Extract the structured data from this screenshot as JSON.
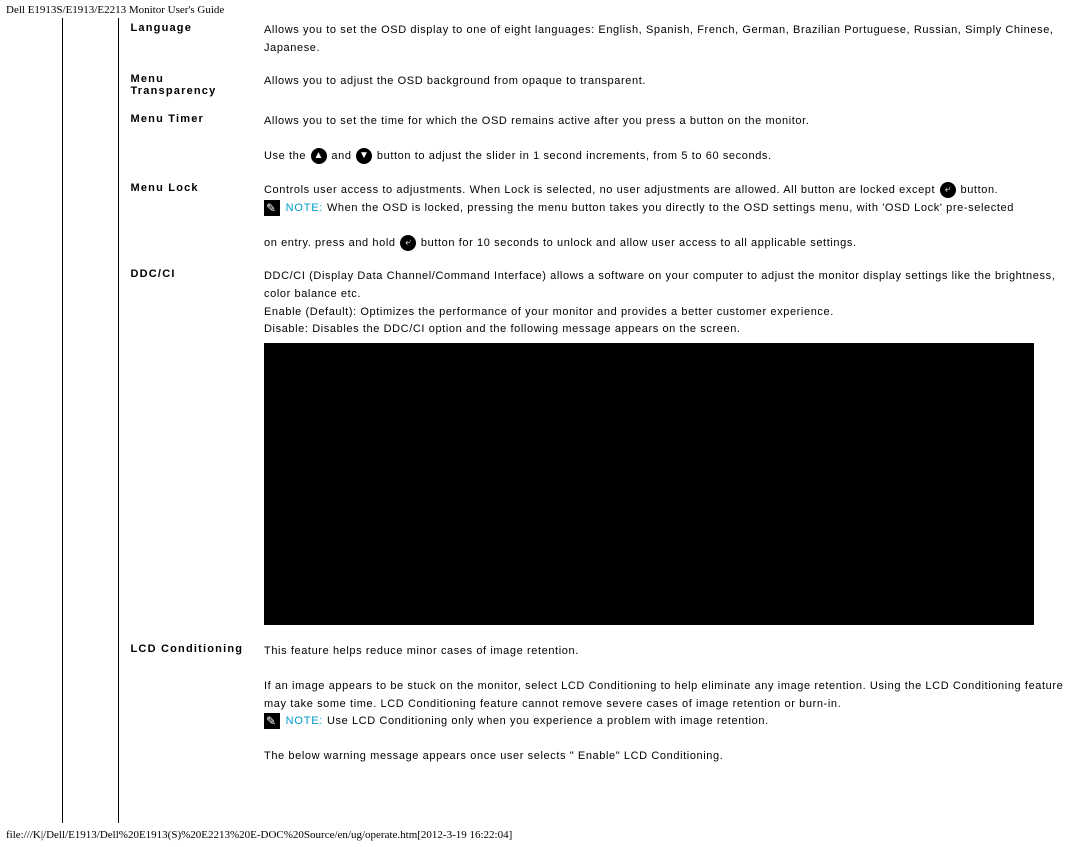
{
  "header": "Dell E1913S/E1913/E2213 Monitor User's Guide",
  "footer": "file:///K|/Dell/E1913/Dell%20E1913(S)%20E2213%20E-DOC%20Source/en/ug/operate.htm[2012-3-19 16:22:04]",
  "noteLabel": "NOTE:",
  "rows": {
    "language": {
      "label": "Language",
      "desc1": "Allows you to set the OSD display to one of eight languages: English, Spanish, French, German, Brazilian Portuguese, Russian, Simply Chinese, Japanese."
    },
    "transparency": {
      "label": "Menu Transparency",
      "desc1": "Allows you to adjust the OSD background from opaque to transparent."
    },
    "timer": {
      "label": "Menu Timer",
      "desc1": "Allows you to set the time for which the OSD remains active after you press a button on the monitor.",
      "desc2a": "Use the ",
      "desc2b": " and ",
      "desc2c": " button to adjust the slider in 1 second increments, from 5 to 60 seconds."
    },
    "lock": {
      "label": "Menu Lock",
      "desc1a": "Controls user access to adjustments. When Lock is selected, no user adjustments are allowed. All button are locked except ",
      "desc1b": " button.",
      "note1": " When the OSD is locked, pressing the menu button takes you directly to the OSD settings menu, with 'OSD Lock' pre-selected",
      "desc2a": "on entry. press and hold ",
      "desc2b": " button for 10 seconds to unlock and allow user access to all applicable settings."
    },
    "ddcci": {
      "label": "DDC/CI",
      "desc1": "DDC/CI (Display Data Channel/Command Interface) allows a software on your computer to adjust the monitor display settings like the brightness, color balance etc.",
      "desc2": "Enable (Default): Optimizes the performance of your monitor and provides a better customer experience.",
      "desc3": "Disable: Disables the DDC/CI option and the following message appears on the screen."
    },
    "lcd": {
      "label": "LCD Conditioning",
      "desc1": "This feature helps reduce minor cases of image retention.",
      "desc2": "If an image appears to be stuck on the monitor, select LCD Conditioning to help eliminate any image retention. Using the LCD Conditioning feature may take some time. LCD Conditioning feature cannot remove  severe cases of image retention or burn-in.",
      "note1": " Use LCD Conditioning only when you experience a problem with image retention.",
      "desc3": "The below warning message appears once user selects \" Enable\" LCD Conditioning."
    }
  }
}
